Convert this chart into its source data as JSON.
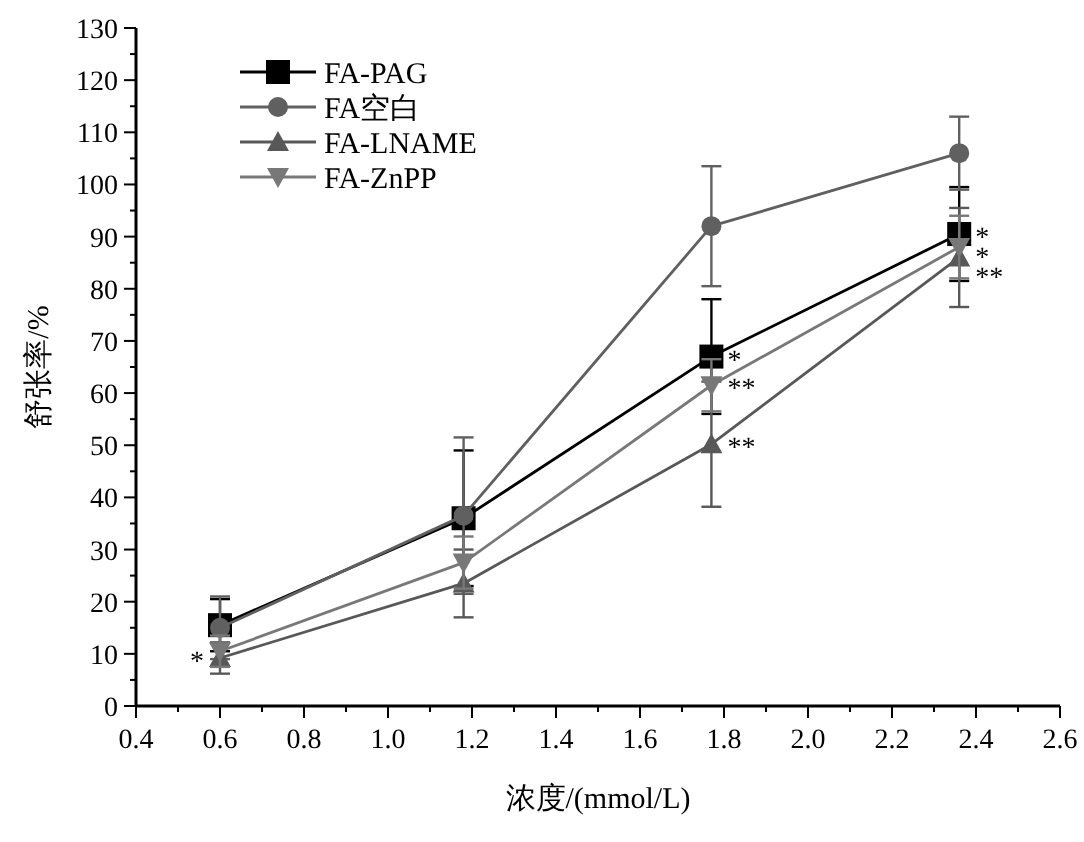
{
  "chart_data": {
    "type": "line",
    "xlabel": "浓度/(mmol/L)",
    "ylabel": "舒张率/%",
    "x": [
      0.6,
      1.18,
      1.77,
      2.36
    ],
    "series": [
      {
        "name": "FA-PAG",
        "color": "#000000",
        "marker": "square",
        "values": [
          15.5,
          36,
          67,
          90.5
        ],
        "errors": [
          5,
          13,
          11,
          9
        ]
      },
      {
        "name": "FA空白",
        "color": "#606060",
        "marker": "circle",
        "values": [
          15,
          36.5,
          92,
          106
        ],
        "errors": [
          6,
          15,
          11.5,
          7
        ]
      },
      {
        "name": "FA-LNAME",
        "color": "#585858",
        "marker": "triangle",
        "values": [
          9.2,
          23.5,
          50.2,
          86
        ],
        "errors": [
          3,
          6.5,
          12,
          9.5
        ]
      },
      {
        "name": "FA-ZnPP",
        "color": "#787878",
        "marker": "triangle-down",
        "values": [
          10.5,
          27.5,
          61.5,
          88
        ],
        "errors": [
          3,
          5,
          5,
          6
        ]
      }
    ],
    "xlim": [
      0.4,
      2.6
    ],
    "xticks": [
      0.4,
      {
        "value": 0.5,
        "label": null
      },
      0.6,
      {
        "value": 0.7,
        "label": null
      },
      0.8,
      {
        "value": 0.9,
        "label": null
      },
      {
        "value": 1.0,
        "label": "1.0"
      },
      {
        "value": 1.1,
        "label": null
      },
      1.2,
      {
        "value": 1.3,
        "label": null
      },
      1.4,
      {
        "value": 1.5,
        "label": null
      },
      1.6,
      {
        "value": 1.7,
        "label": null
      },
      1.8,
      {
        "value": 1.9,
        "label": null
      },
      {
        "value": 2.0,
        "label": "2.0"
      },
      {
        "value": 2.1,
        "label": null
      },
      2.2,
      {
        "value": 2.3,
        "label": null
      },
      2.4,
      {
        "value": 2.5,
        "label": null
      },
      2.6
    ],
    "ylim": [
      0,
      130
    ],
    "yticks": [
      0,
      {
        "value": 5,
        "label": null
      },
      10,
      {
        "value": 15,
        "label": null
      },
      20,
      {
        "value": 25,
        "label": null
      },
      30,
      {
        "value": 35,
        "label": null
      },
      40,
      {
        "value": 45,
        "label": null
      },
      50,
      {
        "value": 55,
        "label": null
      },
      60,
      {
        "value": 65,
        "label": null
      },
      70,
      {
        "value": 75,
        "label": null
      },
      80,
      {
        "value": 85,
        "label": null
      },
      90,
      {
        "value": 95,
        "label": null
      },
      100,
      {
        "value": 105,
        "label": null
      },
      110,
      {
        "value": 115,
        "label": null
      },
      120,
      {
        "value": 125,
        "label": null
      },
      130
    ],
    "grid": false,
    "legend": "top left",
    "line_style": "solid",
    "annotations": [
      {
        "text": "*",
        "x": 0.6,
        "y": 9.2
      },
      {
        "text": "*",
        "x": 1.77,
        "y": 67
      },
      {
        "text": "**",
        "x": 1.77,
        "y": 61.5
      },
      {
        "text": "**",
        "x": 1.77,
        "y": 50.2
      },
      {
        "text": "*",
        "x": 2.36,
        "y": 90.5
      },
      {
        "text": "*",
        "x": 2.36,
        "y": 88
      },
      {
        "text": "**",
        "x": 2.36,
        "y": 86
      }
    ]
  }
}
